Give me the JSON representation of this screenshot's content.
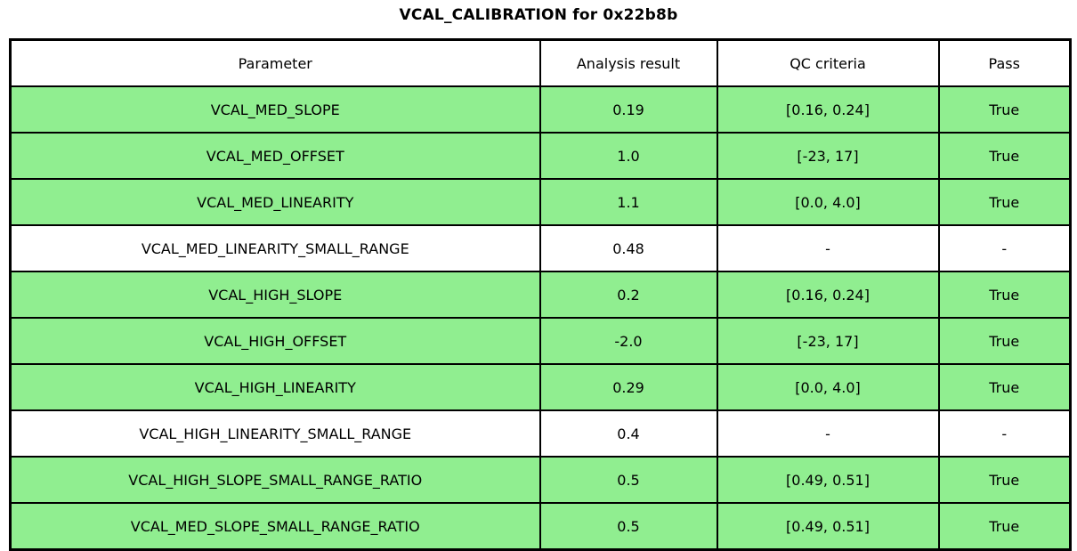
{
  "title": "VCAL_CALIBRATION for 0x22b8b",
  "table": {
    "columns": [
      "Parameter",
      "Analysis result",
      "QC criteria",
      "Pass"
    ],
    "rows": [
      {
        "parameter": "VCAL_MED_SLOPE",
        "result": "0.19",
        "criteria": "[0.16, 0.24]",
        "pass": "True",
        "highlight": "green"
      },
      {
        "parameter": "VCAL_MED_OFFSET",
        "result": "1.0",
        "criteria": "[-23, 17]",
        "pass": "True",
        "highlight": "green"
      },
      {
        "parameter": "VCAL_MED_LINEARITY",
        "result": "1.1",
        "criteria": "[0.0, 4.0]",
        "pass": "True",
        "highlight": "green"
      },
      {
        "parameter": "VCAL_MED_LINEARITY_SMALL_RANGE",
        "result": "0.48",
        "criteria": "-",
        "pass": "-",
        "highlight": "white"
      },
      {
        "parameter": "VCAL_HIGH_SLOPE",
        "result": "0.2",
        "criteria": "[0.16, 0.24]",
        "pass": "True",
        "highlight": "green"
      },
      {
        "parameter": "VCAL_HIGH_OFFSET",
        "result": "-2.0",
        "criteria": "[-23, 17]",
        "pass": "True",
        "highlight": "green"
      },
      {
        "parameter": "VCAL_HIGH_LINEARITY",
        "result": "0.29",
        "criteria": "[0.0, 4.0]",
        "pass": "True",
        "highlight": "green"
      },
      {
        "parameter": "VCAL_HIGH_LINEARITY_SMALL_RANGE",
        "result": "0.4",
        "criteria": "-",
        "pass": "-",
        "highlight": "white"
      },
      {
        "parameter": "VCAL_HIGH_SLOPE_SMALL_RANGE_RATIO",
        "result": "0.5",
        "criteria": "[0.49, 0.51]",
        "pass": "True",
        "highlight": "green"
      },
      {
        "parameter": "VCAL_MED_SLOPE_SMALL_RANGE_RATIO",
        "result": "0.5",
        "criteria": "[0.49, 0.51]",
        "pass": "True",
        "highlight": "green"
      }
    ]
  },
  "colors": {
    "pass_green": "#90ee90",
    "no_qc_white": "#ffffff",
    "border": "#000000"
  }
}
